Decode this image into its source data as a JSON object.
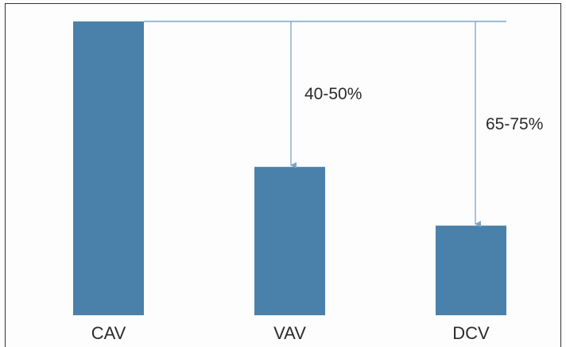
{
  "chart_data": {
    "type": "bar",
    "title": "",
    "xlabel": "",
    "ylabel": "",
    "categories": [
      "CAV",
      "VAV",
      "DCV"
    ],
    "values": [
      100,
      50.5,
      30.5
    ],
    "ylim": [
      0,
      100
    ],
    "grid": false,
    "legend": "none",
    "annotations": [
      {
        "text": "40-50%",
        "from": "CAV",
        "to": "VAV"
      },
      {
        "text": "65-75%",
        "from": "CAV",
        "to": "DCV"
      }
    ],
    "colors": {
      "bar": "#4a81aa",
      "reference_line": "#7aa6c8",
      "arrow": "#7aa6c8",
      "text": "#2b2b2b"
    }
  }
}
